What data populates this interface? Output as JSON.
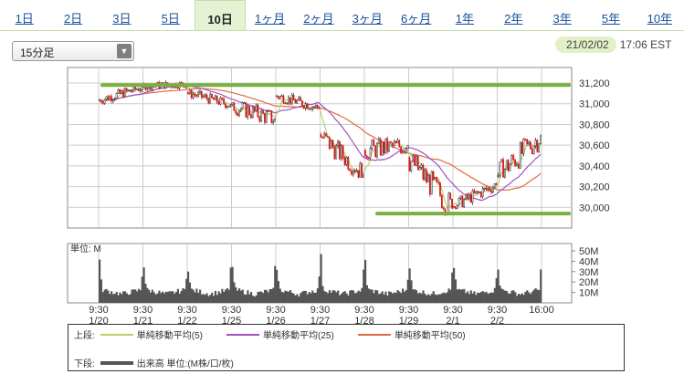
{
  "tabs": [
    "1日",
    "2日",
    "3日",
    "5日",
    "10日",
    "1ヶ月",
    "2ヶ月",
    "3ヶ月",
    "6ヶ月",
    "1年",
    "2年",
    "3年",
    "5年",
    "10年"
  ],
  "active_tab": 4,
  "interval_select": {
    "value": "15分足"
  },
  "timestamp": {
    "date": "21/02/02",
    "time": "17:06 EST"
  },
  "volume_unit_label": "単位: M",
  "legend": {
    "upper_label": "上段:",
    "lower_label": "下段:",
    "ma5_label": "単純移動平均(5)",
    "ma25_label": "単純移動平均(25)",
    "ma50_label": "単純移動平均(50)",
    "volume_label": "出来高 単位:(M株/口/枚)"
  },
  "colors": {
    "ma5": "#b5d16b",
    "ma25": "#a24fc4",
    "ma50": "#e06b40",
    "up": "#2a2a2a",
    "down": "#d91a1a",
    "volume": "#555555",
    "support_line": "#79b040",
    "grid": "#cccccc"
  },
  "chart_data": {
    "type": "candlestick",
    "price_ylim": [
      29800,
      31350
    ],
    "price_ticks": [
      "31,200",
      "31,000",
      "30,800",
      "30,600",
      "30,400",
      "30,200",
      "30,000"
    ],
    "price_tick_values": [
      31200,
      31000,
      30800,
      30600,
      30400,
      30200,
      30000
    ],
    "volume_ylim": [
      0,
      57
    ],
    "volume_ticks": [
      "50M",
      "40M",
      "30M",
      "20M",
      "10M"
    ],
    "volume_tick_values": [
      50,
      40,
      30,
      20,
      10
    ],
    "x_labels": [
      {
        "time": "9:30",
        "date": "1/20"
      },
      {
        "time": "9:30",
        "date": "1/21"
      },
      {
        "time": "9:30",
        "date": "1/22"
      },
      {
        "time": "9:30",
        "date": "1/25"
      },
      {
        "time": "9:30",
        "date": "1/26"
      },
      {
        "time": "9:30",
        "date": "1/27"
      },
      {
        "time": "9:30",
        "date": "1/28"
      },
      {
        "time": "9:30",
        "date": "1/29"
      },
      {
        "time": "9:30",
        "date": "2/1"
      },
      {
        "time": "9:30",
        "date": "2/2"
      },
      {
        "time": "16:00",
        "date": ""
      }
    ],
    "sessions": [
      {
        "date": "1/20",
        "open": 31030,
        "close": 31160,
        "high": 31200,
        "low": 30990
      },
      {
        "date": "1/21",
        "open": 31170,
        "close": 31190,
        "high": 31280,
        "low": 31120
      },
      {
        "date": "1/22",
        "open": 31110,
        "close": 30990,
        "high": 31140,
        "low": 30920
      },
      {
        "date": "1/25",
        "open": 30990,
        "close": 30850,
        "high": 31020,
        "low": 30640
      },
      {
        "date": "1/26",
        "open": 31080,
        "close": 30960,
        "high": 31120,
        "low": 30900
      },
      {
        "date": "1/27",
        "open": 30700,
        "close": 30320,
        "high": 30740,
        "low": 30280
      },
      {
        "date": "1/28",
        "open": 30550,
        "close": 30600,
        "high": 30900,
        "low": 30460
      },
      {
        "date": "1/29",
        "open": 30480,
        "close": 29990,
        "high": 30510,
        "low": 29910
      },
      {
        "date": "2/1",
        "open": 30010,
        "close": 30220,
        "high": 30260,
        "low": 29980
      },
      {
        "date": "2/2",
        "open": 30300,
        "close": 30690,
        "high": 30830,
        "low": 30280
      }
    ],
    "support_levels": [
      31180,
      29940
    ],
    "series": [
      {
        "name": "単純移動平均(5)"
      },
      {
        "name": "単純移動平均(25)"
      },
      {
        "name": "単純移動平均(50)"
      }
    ]
  }
}
